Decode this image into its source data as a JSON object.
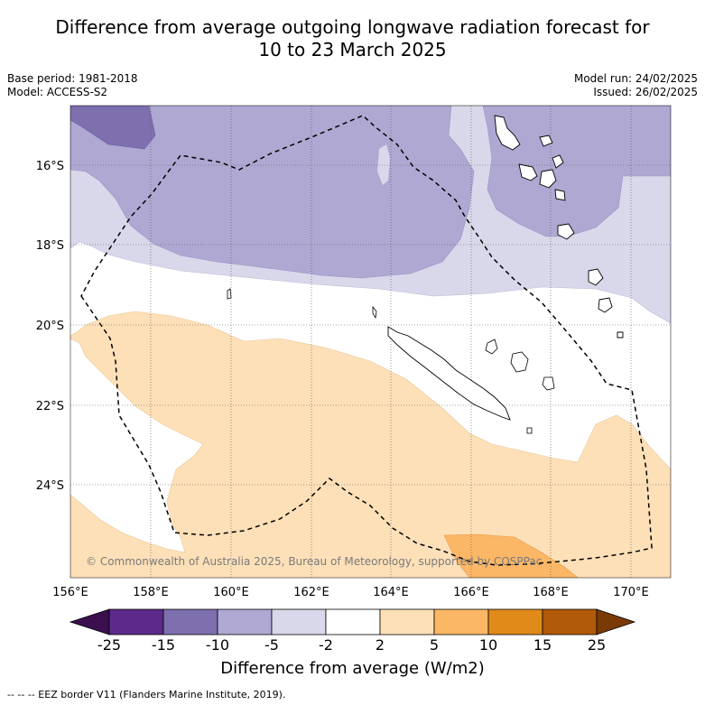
{
  "title_line1": "Difference from average outgoing longwave radiation forecast for",
  "title_line2": "10 to 23 March 2025",
  "base_period": "Base period: 1981-2018",
  "model": "Model: ACCESS-S2",
  "model_run": "Model run: 24/02/2025",
  "issued": "Issued: 26/02/2025",
  "copyright": "© Commonwealth of Australia 2025, Bureau of Meteorology, supported by COSPPac",
  "lon_ticks": [
    "156°E",
    "158°E",
    "160°E",
    "162°E",
    "164°E",
    "166°E",
    "168°E",
    "170°E"
  ],
  "lat_ticks": [
    "16°S",
    "18°S",
    "20°S",
    "22°S",
    "24°S"
  ],
  "colorbar": {
    "ticks": [
      "-25",
      "-15",
      "-10",
      "-5",
      "-2",
      "2",
      "5",
      "10",
      "15",
      "25"
    ],
    "colors": [
      "#3b0f4f",
      "#5b2a8a",
      "#7e6fae",
      "#aea8d2",
      "#d8d8ea",
      "#ffffff",
      "#fde0b8",
      "#fbb765",
      "#e08a1a",
      "#b05a0a",
      "#7a3a06"
    ],
    "title": "Difference from average (W/m2)"
  },
  "footnote": "--  --  -- EEZ border V11 (Flanders Marine Institute, 2019)."
}
